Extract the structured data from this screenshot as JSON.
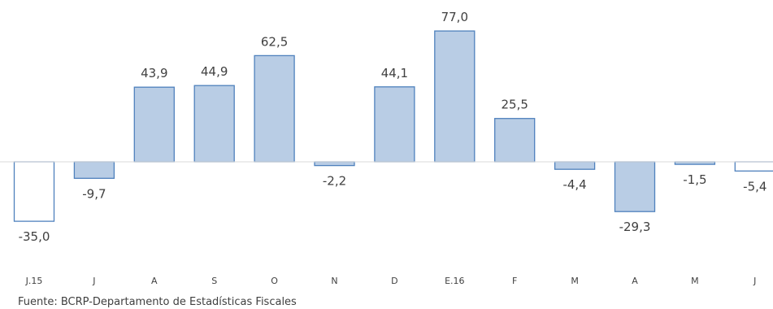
{
  "chart_data": {
    "type": "bar",
    "categories": [
      "J.15",
      "J",
      "A",
      "S",
      "O",
      "N",
      "D",
      "E.16",
      "F",
      "M",
      "A",
      "M",
      "J"
    ],
    "values": [
      -35.0,
      -9.7,
      43.9,
      44.9,
      62.5,
      -2.2,
      44.1,
      77.0,
      25.5,
      -4.4,
      -29.3,
      -1.5,
      -5.4
    ],
    "data_labels": [
      "-35,0",
      "-9,7",
      "43,9",
      "44,9",
      "62,5",
      "-2,2",
      "44,1",
      "77,0",
      "25,5",
      "-4,4",
      "-29,3",
      "-1,5",
      "-5,4"
    ],
    "highlighted_bars": [
      0,
      12
    ],
    "title": "",
    "xlabel": "",
    "ylabel": "",
    "grid": false,
    "legend": "none",
    "colors": {
      "fill": "#b9cde5",
      "fill_highlight": "#ffffff",
      "stroke": "#4f81bd",
      "text": "#404040"
    }
  },
  "source": "Fuente: BCRP-Departamento de Estadísticas Fiscales"
}
